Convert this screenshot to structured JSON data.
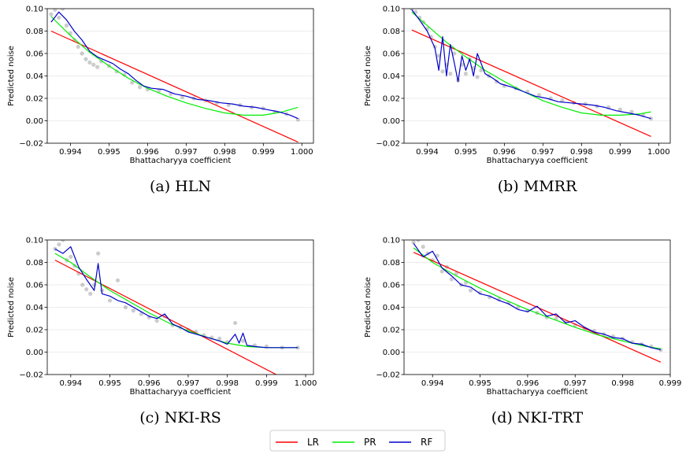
{
  "legend": {
    "entries": [
      {
        "label": "LR",
        "color": "#ff0000"
      },
      {
        "label": "PR",
        "color": "#00ee00"
      },
      {
        "label": "RF",
        "color": "#0000cc"
      }
    ]
  },
  "colors": {
    "scatter": "#808080",
    "grid": "#e6e6e6"
  },
  "chart_data": [
    {
      "type": "scatter",
      "caption": "(a) HLN",
      "xlabel": "Bhattacharyya coefficient",
      "ylabel": "Predicted noise",
      "xlim": [
        0.9934,
        1.0003
      ],
      "ylim": [
        -0.02,
        0.1
      ],
      "xticks": [
        0.994,
        0.995,
        0.996,
        0.997,
        0.998,
        0.999,
        1.0
      ],
      "xtick_labels": [
        "0.994",
        "0.995",
        "0.996",
        "0.997",
        "0.998",
        "0.999",
        "1.000"
      ],
      "yticks": [
        -0.02,
        0.0,
        0.02,
        0.04,
        0.06,
        0.08,
        0.1
      ],
      "ytick_labels": [
        "−0.02",
        "0.00",
        "0.02",
        "0.04",
        "0.06",
        "0.08",
        "0.10"
      ],
      "grid": "horizontal",
      "series": [
        {
          "name": "LR",
          "kind": "line",
          "x": [
            0.9935,
            0.9999
          ],
          "y": [
            0.08,
            -0.019
          ]
        },
        {
          "name": "PR",
          "kind": "line",
          "x": [
            0.9935,
            0.994,
            0.9945,
            0.995,
            0.9955,
            0.996,
            0.9965,
            0.997,
            0.9975,
            0.998,
            0.9985,
            0.999,
            0.9995,
            0.9999
          ],
          "y": [
            0.093,
            0.076,
            0.061,
            0.049,
            0.038,
            0.029,
            0.022,
            0.016,
            0.011,
            0.007,
            0.005,
            0.005,
            0.008,
            0.012
          ]
        },
        {
          "name": "RF",
          "kind": "line",
          "x": [
            0.9935,
            0.9937,
            0.9939,
            0.9941,
            0.9943,
            0.9945,
            0.9947,
            0.9949,
            0.9951,
            0.9953,
            0.9955,
            0.9957,
            0.9959,
            0.9961,
            0.9964,
            0.9967,
            0.997,
            0.9973,
            0.9976,
            0.9979,
            0.9982,
            0.9985,
            0.9988,
            0.9991,
            0.9994,
            0.9997,
            0.9999
          ],
          "y": [
            0.088,
            0.097,
            0.09,
            0.08,
            0.072,
            0.062,
            0.057,
            0.054,
            0.051,
            0.046,
            0.042,
            0.036,
            0.031,
            0.029,
            0.028,
            0.024,
            0.022,
            0.019,
            0.018,
            0.016,
            0.015,
            0.013,
            0.012,
            0.01,
            0.008,
            0.005,
            0.002
          ]
        },
        {
          "name": "samples",
          "kind": "points",
          "x": [
            0.9935,
            0.9936,
            0.9937,
            0.9938,
            0.9939,
            0.994,
            0.9941,
            0.9942,
            0.9943,
            0.9944,
            0.9945,
            0.9946,
            0.9947,
            0.9948,
            0.995,
            0.9952,
            0.9954,
            0.9956,
            0.9958,
            0.996,
            0.9963,
            0.9966,
            0.9969,
            0.9972,
            0.9975,
            0.9978,
            0.9981,
            0.9984,
            0.9987,
            0.999,
            0.9993,
            0.9996,
            0.9999
          ],
          "y": [
            0.095,
            0.099,
            0.092,
            0.1,
            0.085,
            0.078,
            0.072,
            0.066,
            0.06,
            0.055,
            0.052,
            0.05,
            0.048,
            0.053,
            0.049,
            0.044,
            0.041,
            0.034,
            0.03,
            0.028,
            0.027,
            0.024,
            0.021,
            0.02,
            0.018,
            0.016,
            0.014,
            0.014,
            0.012,
            0.011,
            0.008,
            0.006,
            0.001
          ]
        }
      ]
    },
    {
      "type": "scatter",
      "caption": "(b) MMRR",
      "xlabel": "Bhattacharyya coefficient",
      "ylabel": "Predicted noise",
      "xlim": [
        0.9934,
        1.0003
      ],
      "ylim": [
        -0.02,
        0.1
      ],
      "xticks": [
        0.994,
        0.995,
        0.996,
        0.997,
        0.998,
        0.999,
        1.0
      ],
      "xtick_labels": [
        "0.994",
        "0.995",
        "0.996",
        "0.997",
        "0.998",
        "0.999",
        "1.000"
      ],
      "yticks": [
        -0.02,
        0.0,
        0.02,
        0.04,
        0.06,
        0.08,
        0.1
      ],
      "ytick_labels": [
        "−0.02",
        "0.00",
        "0.02",
        "0.04",
        "0.06",
        "0.08",
        "0.10"
      ],
      "grid": "horizontal",
      "series": [
        {
          "name": "LR",
          "kind": "line",
          "x": [
            0.9936,
            0.9998
          ],
          "y": [
            0.081,
            -0.014
          ]
        },
        {
          "name": "PR",
          "kind": "line",
          "x": [
            0.9936,
            0.994,
            0.9945,
            0.995,
            0.9955,
            0.996,
            0.9965,
            0.997,
            0.9975,
            0.998,
            0.9985,
            0.999,
            0.9995,
            0.9998
          ],
          "y": [
            0.097,
            0.085,
            0.07,
            0.057,
            0.045,
            0.035,
            0.026,
            0.018,
            0.012,
            0.007,
            0.005,
            0.005,
            0.006,
            0.008
          ]
        },
        {
          "name": "RF",
          "kind": "line",
          "x": [
            0.9936,
            0.9938,
            0.994,
            0.9942,
            0.9943,
            0.9944,
            0.9945,
            0.9946,
            0.9947,
            0.9948,
            0.9949,
            0.995,
            0.9951,
            0.9952,
            0.9953,
            0.9955,
            0.9957,
            0.9959,
            0.9962,
            0.9965,
            0.9968,
            0.9971,
            0.9974,
            0.9977,
            0.998,
            0.9983,
            0.9986,
            0.9989,
            0.9992,
            0.9995,
            0.9998
          ],
          "y": [
            0.099,
            0.09,
            0.08,
            0.065,
            0.045,
            0.075,
            0.04,
            0.068,
            0.052,
            0.035,
            0.058,
            0.045,
            0.055,
            0.04,
            0.06,
            0.042,
            0.038,
            0.033,
            0.03,
            0.026,
            0.022,
            0.02,
            0.017,
            0.016,
            0.015,
            0.014,
            0.012,
            0.009,
            0.007,
            0.005,
            0.002
          ]
        },
        {
          "name": "samples",
          "kind": "points",
          "x": [
            0.9936,
            0.9937,
            0.9938,
            0.9939,
            0.994,
            0.9941,
            0.9942,
            0.9943,
            0.9944,
            0.9945,
            0.9946,
            0.9947,
            0.9948,
            0.9949,
            0.995,
            0.9951,
            0.9952,
            0.9953,
            0.9954,
            0.9956,
            0.9958,
            0.996,
            0.9963,
            0.9966,
            0.9969,
            0.9972,
            0.9975,
            0.9978,
            0.9981,
            0.9984,
            0.9987,
            0.999,
            0.9993,
            0.9996,
            0.9998
          ],
          "y": [
            0.1,
            0.097,
            0.092,
            0.088,
            0.082,
            0.075,
            0.066,
            0.058,
            0.044,
            0.05,
            0.042,
            0.06,
            0.036,
            0.05,
            0.042,
            0.055,
            0.047,
            0.039,
            0.045,
            0.04,
            0.035,
            0.031,
            0.029,
            0.026,
            0.023,
            0.02,
            0.018,
            0.016,
            0.015,
            0.013,
            0.012,
            0.01,
            0.008,
            0.005,
            0.002
          ]
        }
      ]
    },
    {
      "type": "scatter",
      "caption": "(c) NKI-RS",
      "xlabel": "Bhattacharyya coefficient",
      "ylabel": "Predicted noise",
      "xlim": [
        0.9934,
        1.0002
      ],
      "ylim": [
        -0.02,
        0.1
      ],
      "xticks": [
        0.994,
        0.995,
        0.996,
        0.997,
        0.998,
        0.999,
        1.0
      ],
      "xtick_labels": [
        "0.994",
        "0.995",
        "0.996",
        "0.997",
        "0.998",
        "0.999",
        "1.000"
      ],
      "yticks": [
        -0.02,
        0.0,
        0.02,
        0.04,
        0.06,
        0.08,
        0.1
      ],
      "ytick_labels": [
        "−0.02",
        "0.00",
        "0.02",
        "0.04",
        "0.06",
        "0.08",
        "0.10"
      ],
      "grid": "horizontal",
      "series": [
        {
          "name": "LR",
          "kind": "line",
          "x": [
            0.9936,
            0.9993
          ],
          "y": [
            0.082,
            -0.021
          ]
        },
        {
          "name": "PR",
          "kind": "line",
          "x": [
            0.9936,
            0.994,
            0.9945,
            0.995,
            0.9955,
            0.996,
            0.9965,
            0.997,
            0.9975,
            0.998,
            0.9985,
            0.999,
            0.9995,
            0.9998
          ],
          "y": [
            0.088,
            0.08,
            0.067,
            0.055,
            0.045,
            0.035,
            0.026,
            0.019,
            0.013,
            0.008,
            0.005,
            0.004,
            0.004,
            0.004
          ]
        },
        {
          "name": "RF",
          "kind": "line",
          "x": [
            0.9936,
            0.9938,
            0.994,
            0.9942,
            0.9944,
            0.9946,
            0.9947,
            0.9948,
            0.995,
            0.9952,
            0.9954,
            0.9956,
            0.9958,
            0.996,
            0.9962,
            0.9964,
            0.9966,
            0.9968,
            0.997,
            0.9972,
            0.9974,
            0.9976,
            0.9978,
            0.998,
            0.9982,
            0.9983,
            0.9984,
            0.9985,
            0.9987,
            0.999,
            0.9994,
            0.9998
          ],
          "y": [
            0.092,
            0.088,
            0.094,
            0.076,
            0.065,
            0.055,
            0.079,
            0.052,
            0.05,
            0.046,
            0.044,
            0.04,
            0.036,
            0.032,
            0.03,
            0.034,
            0.025,
            0.022,
            0.018,
            0.016,
            0.014,
            0.012,
            0.01,
            0.007,
            0.016,
            0.008,
            0.017,
            0.006,
            0.005,
            0.004,
            0.004,
            0.004
          ]
        },
        {
          "name": "samples",
          "kind": "points",
          "x": [
            0.9936,
            0.9937,
            0.9938,
            0.9939,
            0.994,
            0.9941,
            0.9942,
            0.9943,
            0.9944,
            0.9945,
            0.9946,
            0.9947,
            0.9948,
            0.995,
            0.9952,
            0.9954,
            0.9956,
            0.9958,
            0.996,
            0.9962,
            0.9964,
            0.9966,
            0.9968,
            0.997,
            0.9972,
            0.9974,
            0.9976,
            0.9978,
            0.998,
            0.9982,
            0.9984,
            0.9987,
            0.999,
            0.9994,
            0.9998
          ],
          "y": [
            0.092,
            0.096,
            0.1,
            0.082,
            0.085,
            0.077,
            0.07,
            0.06,
            0.056,
            0.052,
            0.06,
            0.088,
            0.055,
            0.046,
            0.064,
            0.04,
            0.037,
            0.034,
            0.031,
            0.028,
            0.032,
            0.024,
            0.022,
            0.02,
            0.018,
            0.015,
            0.013,
            0.012,
            0.009,
            0.026,
            0.01,
            0.006,
            0.005,
            0.004,
            0.004
          ]
        }
      ]
    },
    {
      "type": "scatter",
      "caption": "(d) NKI-TRT",
      "xlabel": "Bhattacharyya coefficient",
      "ylabel": "Predicted noise",
      "xlim": [
        0.9934,
        0.999
      ],
      "ylim": [
        -0.02,
        0.1
      ],
      "xticks": [
        0.994,
        0.995,
        0.996,
        0.997,
        0.998,
        0.999
      ],
      "xtick_labels": [
        "0.994",
        "0.995",
        "0.996",
        "0.997",
        "0.998",
        "0.999"
      ],
      "yticks": [
        -0.02,
        0.0,
        0.02,
        0.04,
        0.06,
        0.08,
        0.1
      ],
      "ytick_labels": [
        "−0.02",
        "0.00",
        "0.02",
        "0.04",
        "0.06",
        "0.08",
        "0.10"
      ],
      "grid": "horizontal",
      "series": [
        {
          "name": "LR",
          "kind": "line",
          "x": [
            0.9936,
            0.9988
          ],
          "y": [
            0.089,
            -0.009
          ]
        },
        {
          "name": "PR",
          "kind": "line",
          "x": [
            0.9936,
            0.994,
            0.9945,
            0.995,
            0.9955,
            0.996,
            0.9965,
            0.997,
            0.9975,
            0.998,
            0.9985,
            0.9988
          ],
          "y": [
            0.093,
            0.08,
            0.068,
            0.057,
            0.047,
            0.038,
            0.03,
            0.022,
            0.015,
            0.01,
            0.005,
            0.003
          ]
        },
        {
          "name": "RF",
          "kind": "line",
          "x": [
            0.9936,
            0.9938,
            0.994,
            0.9942,
            0.9944,
            0.9946,
            0.9948,
            0.995,
            0.9952,
            0.9954,
            0.9956,
            0.9958,
            0.996,
            0.9962,
            0.9964,
            0.9966,
            0.9968,
            0.997,
            0.9972,
            0.9974,
            0.9976,
            0.9978,
            0.998,
            0.9982,
            0.9984,
            0.9986,
            0.9988
          ],
          "y": [
            0.097,
            0.085,
            0.09,
            0.075,
            0.068,
            0.06,
            0.058,
            0.052,
            0.05,
            0.046,
            0.043,
            0.038,
            0.036,
            0.041,
            0.032,
            0.034,
            0.026,
            0.028,
            0.022,
            0.018,
            0.016,
            0.013,
            0.012,
            0.008,
            0.007,
            0.004,
            0.002
          ]
        },
        {
          "name": "samples",
          "kind": "points",
          "x": [
            0.9936,
            0.9937,
            0.9938,
            0.9939,
            0.994,
            0.9941,
            0.9942,
            0.9943,
            0.9944,
            0.9945,
            0.9946,
            0.9947,
            0.9948,
            0.995,
            0.9952,
            0.9954,
            0.9956,
            0.9958,
            0.996,
            0.9962,
            0.9964,
            0.9966,
            0.9968,
            0.997,
            0.9972,
            0.9974,
            0.9976,
            0.9978,
            0.998,
            0.9982,
            0.9984,
            0.9986,
            0.9988
          ],
          "y": [
            0.098,
            0.1,
            0.094,
            0.088,
            0.082,
            0.086,
            0.072,
            0.076,
            0.065,
            0.07,
            0.06,
            0.062,
            0.055,
            0.053,
            0.049,
            0.047,
            0.044,
            0.04,
            0.037,
            0.035,
            0.031,
            0.03,
            0.027,
            0.024,
            0.021,
            0.019,
            0.016,
            0.014,
            0.012,
            0.009,
            0.007,
            0.005,
            0.002
          ]
        }
      ]
    }
  ]
}
